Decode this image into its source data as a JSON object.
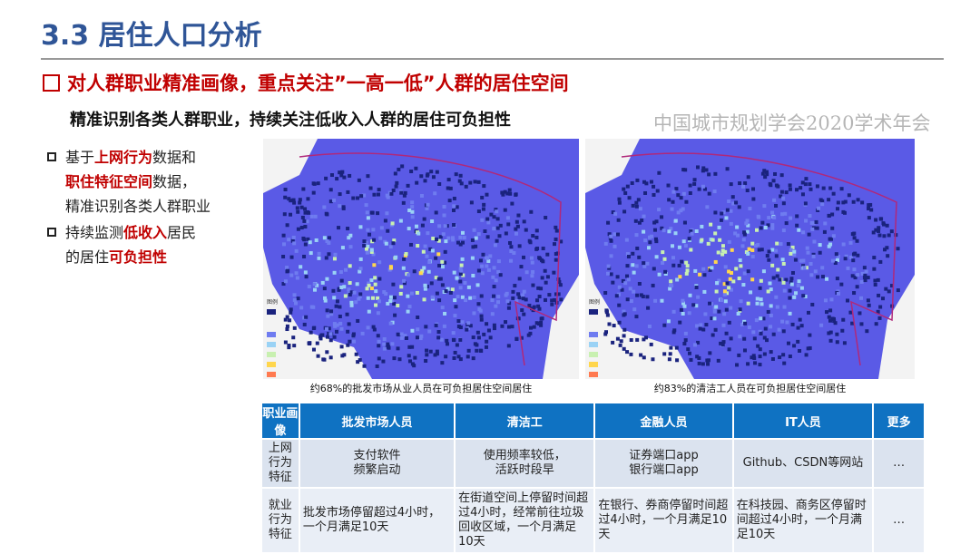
{
  "header": {
    "title": "3.3 居住人口分析"
  },
  "heading": "对人群职业精准画像，重点关注”一高一低”人群的居住空间",
  "subheading": "精准识别各类人群职业，持续关注低收入人群的居住可负担性",
  "bullets": [
    {
      "parts": [
        {
          "t": "基于"
        },
        {
          "t": "上网行为",
          "hl": true
        },
        {
          "t": "数据和"
        },
        {
          "t": "职住特征空间",
          "hl": true
        },
        {
          "t": "数据，精准识别各类人群职业"
        }
      ]
    },
    {
      "parts": [
        {
          "t": "持续监测"
        },
        {
          "t": "低收入",
          "hl": true
        },
        {
          "t": "居民的居住"
        },
        {
          "t": "可负担性",
          "hl": true
        }
      ]
    }
  ],
  "maps": [
    {
      "caption": "约68%的批发市场从业人员在可负担居住空间居住",
      "legend_title": "图例"
    },
    {
      "caption": "约83%的清洁工人员在可负担居住空间居住",
      "legend_title": "图例"
    }
  ],
  "colors": {
    "title": "#2f5597",
    "accent": "#c00000",
    "table_header": "#0f72c2",
    "map_base": "#5a5ae6"
  },
  "table": {
    "headers": [
      "职业画像",
      "批发市场人员",
      "清洁工",
      "金融人员",
      "IT人员",
      "更多"
    ],
    "rows": [
      [
        "上网行为特征",
        "支付软件\n频繁启动",
        "使用频率较低，\n活跃时段早",
        "证券端口app\n银行端口app",
        "Github、CSDN等网站",
        "…"
      ],
      [
        "就业行为特征",
        "批发市场停留超过4小时，一个月满足10天",
        "在街道空间上停留时间超过4小时，经常前往垃圾回收区域，一个月满足10天",
        "在银行、券商停留时间超过4小时，一个月满足10天",
        "在科技园、商务区停留时间超过4小时，一个月满足10天",
        "…"
      ]
    ]
  },
  "watermark": "中国城市规划学会2020学术年会"
}
